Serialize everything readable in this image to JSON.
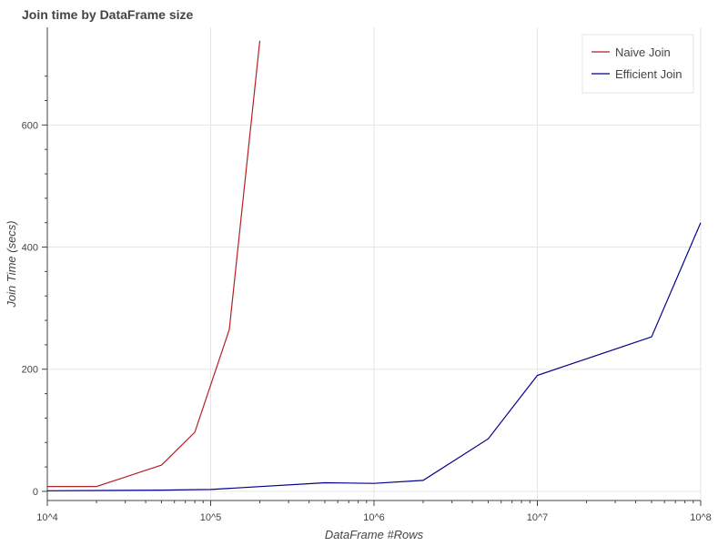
{
  "chart_data": {
    "type": "line",
    "title": "Join time by DataFrame size",
    "xlabel": "DataFrame #Rows",
    "ylabel": "Join Time (secs)",
    "x_scale": "log",
    "xlim": [
      10000,
      100000000
    ],
    "ylim": [
      -15,
      760
    ],
    "x_ticks": [
      {
        "value": 10000,
        "label": "10^4"
      },
      {
        "value": 100000,
        "label": "10^5"
      },
      {
        "value": 1000000,
        "label": "10^6"
      },
      {
        "value": 10000000,
        "label": "10^7"
      },
      {
        "value": 100000000,
        "label": "10^8"
      }
    ],
    "y_ticks": [
      {
        "value": 0,
        "label": "0"
      },
      {
        "value": 200,
        "label": "200"
      },
      {
        "value": 400,
        "label": "400"
      },
      {
        "value": 600,
        "label": "600"
      }
    ],
    "grid": true,
    "legend_position": "top-right",
    "series": [
      {
        "name": "Naive Join",
        "color": "#b22222",
        "x": [
          10000,
          20000,
          50000,
          80000,
          130000,
          200000
        ],
        "y": [
          8,
          8,
          43,
          97,
          265,
          738
        ]
      },
      {
        "name": "Efficient Join",
        "color": "#00008b",
        "x": [
          10000,
          50000,
          100000,
          500000,
          1000000,
          2000000,
          5000000,
          10000000,
          50000000,
          100000000
        ],
        "y": [
          1,
          2,
          3,
          14,
          13,
          18,
          86,
          190,
          253,
          440
        ]
      }
    ]
  }
}
